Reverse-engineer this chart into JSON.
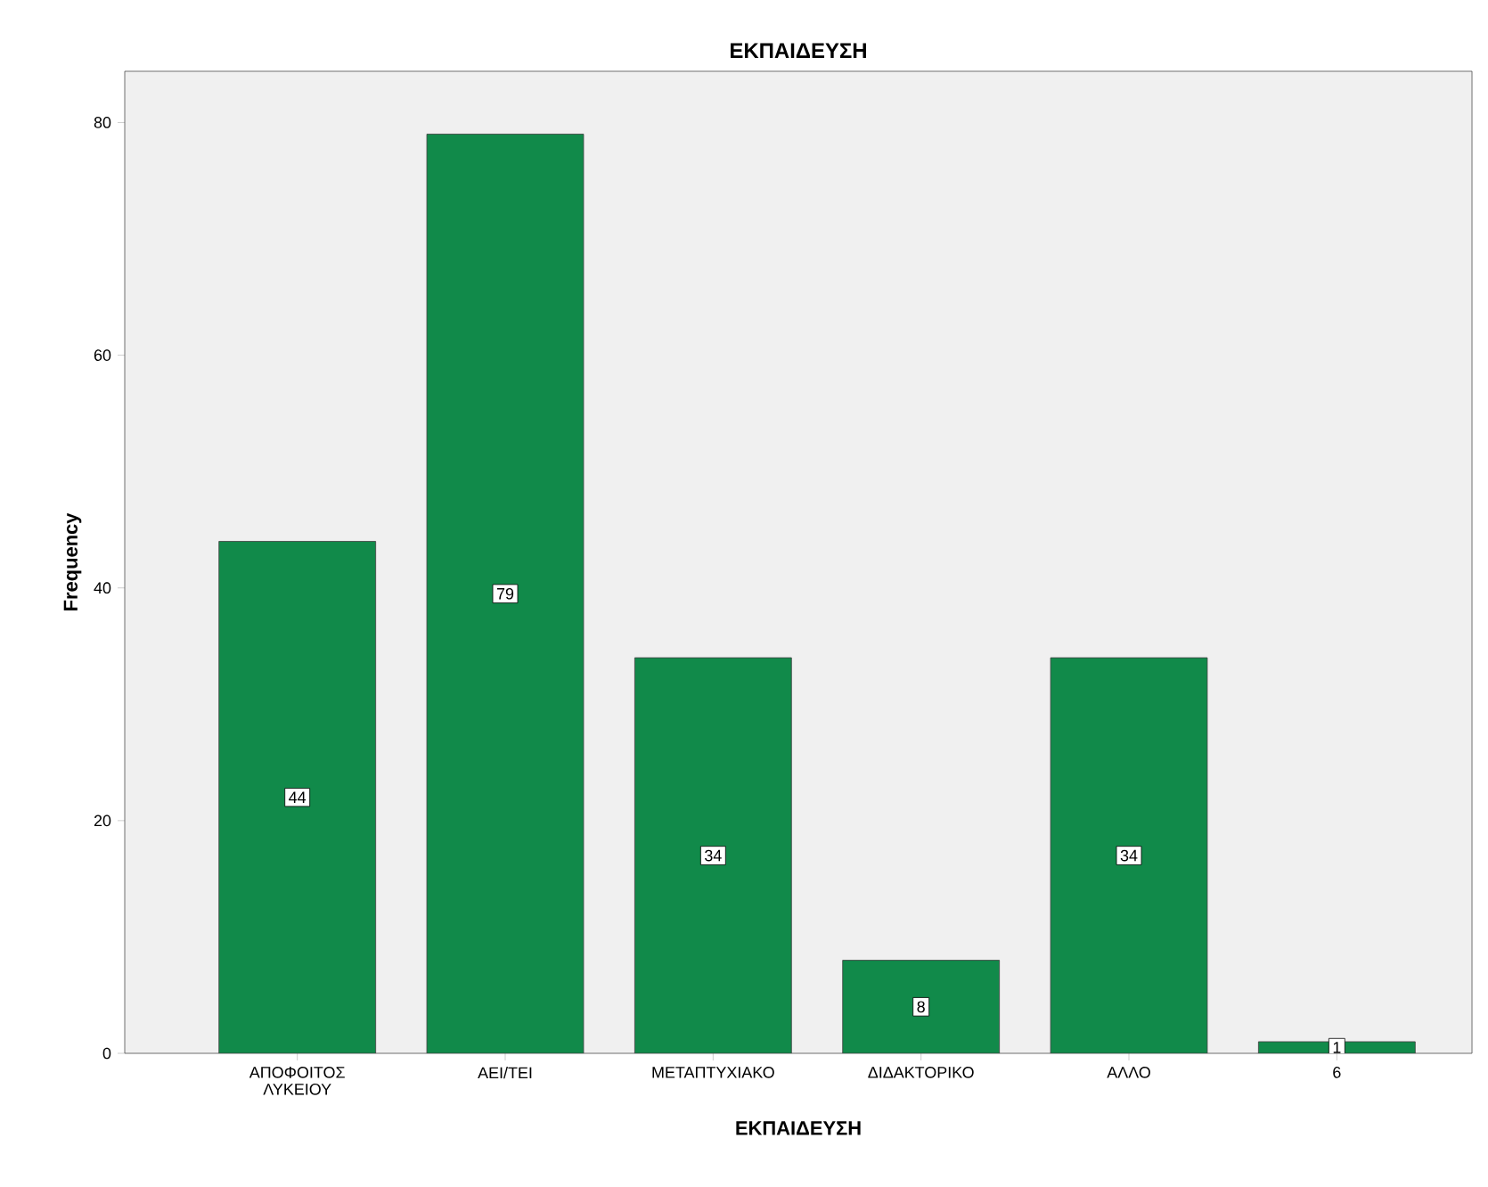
{
  "chart_data": {
    "type": "bar",
    "title": "ΕΚΠΑΙΔΕΥΣΗ",
    "xlabel": "ΕΚΠΑΙΔΕΥΣΗ",
    "ylabel": "Frequency",
    "categories": [
      "ΑΠΟΦΟΙΤΟΣ ΛΥΚΕΙΟΥ",
      "ΑΕΙ/ΤΕΙ",
      "ΜΕΤΑΠΤΥΧΙΑΚΟ",
      "ΔΙΔΑΚΤΟΡΙΚΟ",
      "ΑΛΛΟ",
      "6"
    ],
    "values": [
      44,
      79,
      34,
      8,
      34,
      1
    ],
    "color": "#118a4a",
    "ylim": [
      0,
      84.4
    ],
    "yticks": [
      0,
      20,
      40,
      60,
      80
    ],
    "data_labels": true
  }
}
